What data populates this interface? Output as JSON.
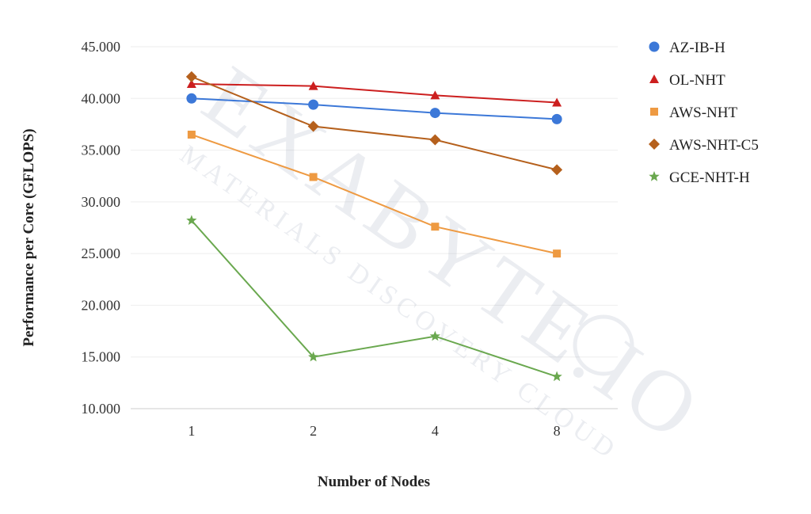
{
  "chart_data": {
    "type": "line",
    "title": "",
    "xlabel": "Number of Nodes",
    "ylabel": "Performance per Core (GFLOPS)",
    "categories": [
      "1",
      "2",
      "4",
      "8"
    ],
    "ylim": [
      10,
      45
    ],
    "yticks": [
      "10.000",
      "15.000",
      "20.000",
      "25.000",
      "30.000",
      "35.000",
      "40.000",
      "45.000"
    ],
    "grid": true,
    "legend_position": "right",
    "series": [
      {
        "name": "AZ-IB-H",
        "color": "#3c78d8",
        "marker": "circle",
        "values": [
          40.0,
          39.4,
          38.6,
          38.0
        ]
      },
      {
        "name": "OL-NHT",
        "color": "#cc1f1f",
        "marker": "triangle",
        "values": [
          41.4,
          41.2,
          40.3,
          39.6
        ]
      },
      {
        "name": "AWS-NHT",
        "color": "#ee9a42",
        "marker": "square",
        "values": [
          36.5,
          32.4,
          27.6,
          25.0
        ]
      },
      {
        "name": "AWS-NHT-C5",
        "color": "#b5601c",
        "marker": "diamond",
        "values": [
          42.1,
          37.3,
          36.0,
          33.1
        ]
      },
      {
        "name": "GCE-NHT-H",
        "color": "#6aa84f",
        "marker": "star",
        "values": [
          28.2,
          15.0,
          17.0,
          13.1
        ]
      }
    ],
    "watermark": {
      "main": "EXABYTE.IO",
      "sub": "MATERIALS DISCOVERY CLOUD"
    }
  }
}
